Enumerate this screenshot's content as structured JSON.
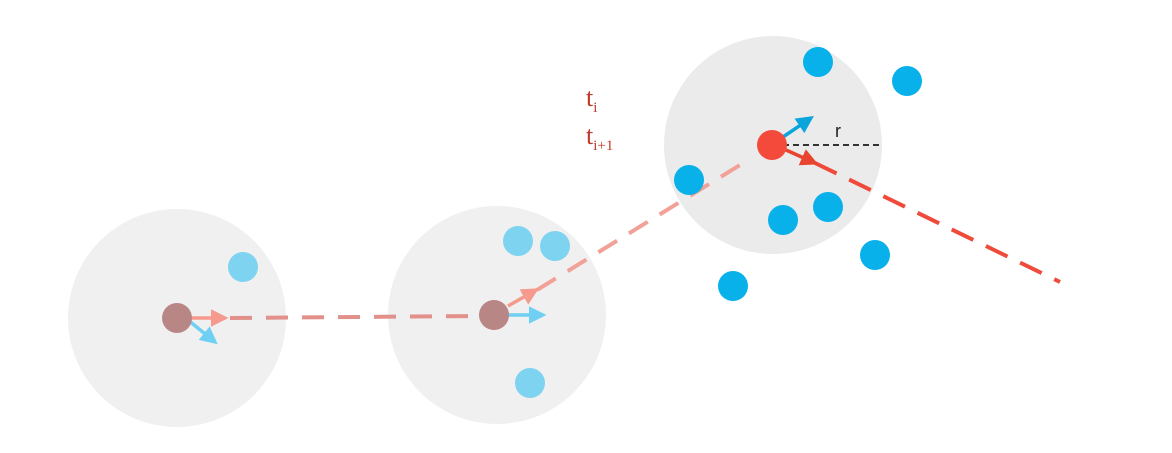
{
  "labels": {
    "t_main_1": "t",
    "t_sub_1": "i",
    "t_main_2": "t",
    "t_sub_2": "i+1",
    "radius": "r"
  },
  "colors": {
    "neighborhood_faded": "#f0f0f0",
    "neighborhood_current": "#ebebec",
    "agent_past": "#b98686",
    "agent_current": "#f34a3b",
    "neighbor_past": "#7dd3f0",
    "neighbor_current": "#08b1ea",
    "trajectory_past": "#e2908a",
    "trajectory_mid": "#f1a198",
    "trajectory_future": "#ef4a3a",
    "heading_past": "#f59a8c",
    "heading_current": "#e8442f",
    "velocity_past": "#6fd0f3",
    "velocity_current": "#0aa5da",
    "radius_line": "#333333",
    "time_label": "#c0392b"
  }
}
